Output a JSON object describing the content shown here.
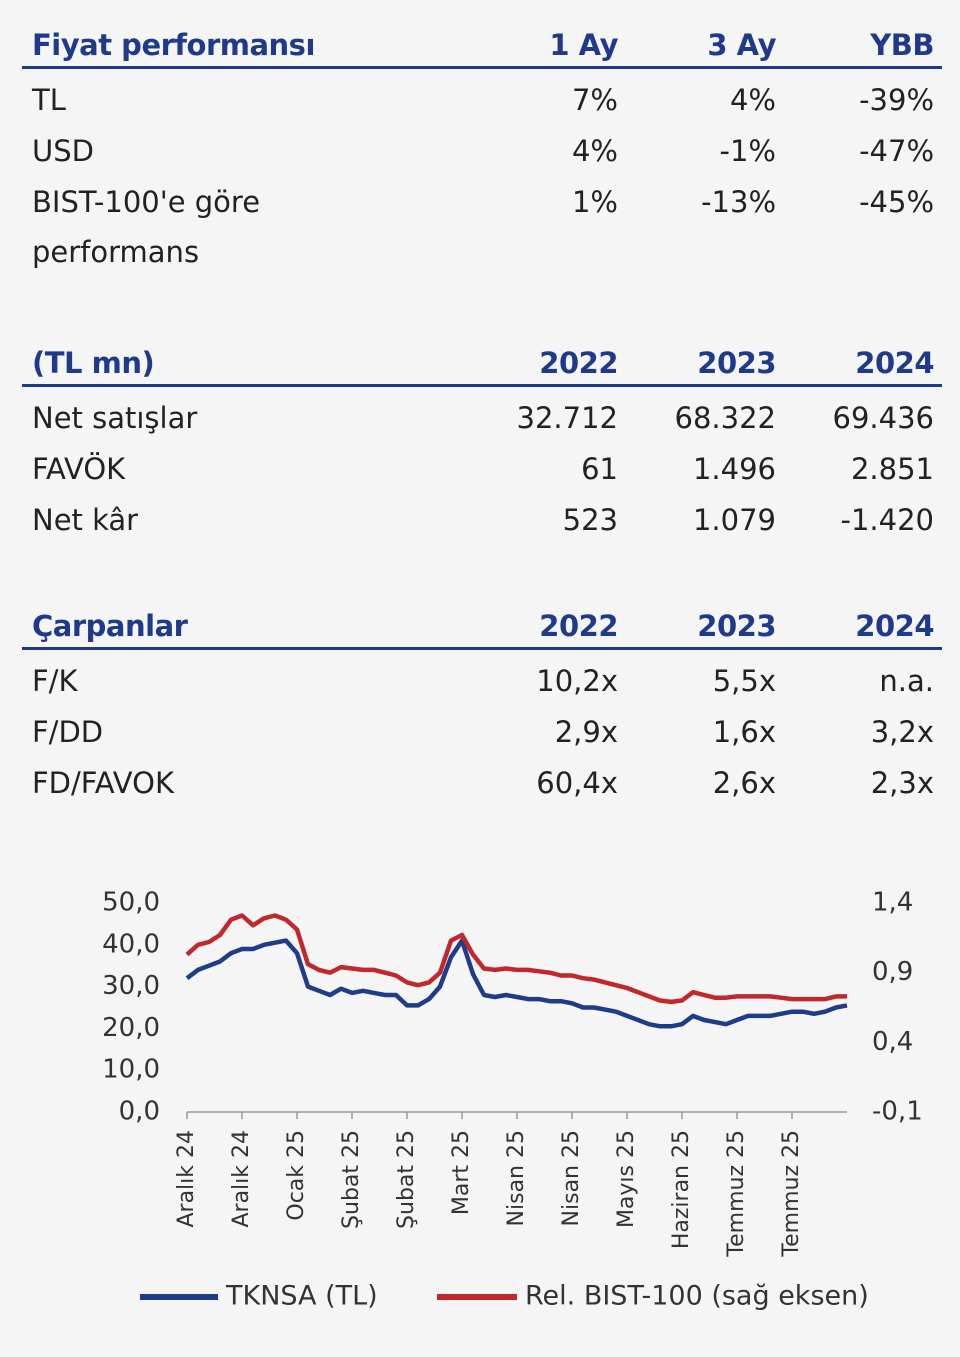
{
  "tables": [
    {
      "header": [
        "Fiyat performansı",
        "1 Ay",
        "3 Ay",
        "YBB"
      ],
      "rows": [
        [
          "TL",
          "7%",
          "4%",
          "-39%"
        ],
        [
          "USD",
          "4%",
          "-1%",
          "-47%"
        ],
        [
          "BIST-100'e göre performans",
          "1%",
          "-13%",
          "-45%"
        ]
      ]
    },
    {
      "header": [
        "(TL mn)",
        "2022",
        "2023",
        "2024"
      ],
      "rows": [
        [
          "Net satışlar",
          "32.712",
          "68.322",
          "69.436"
        ],
        [
          "FAVÖK",
          "61",
          "1.496",
          "2.851"
        ],
        [
          "Net kâr",
          "523",
          "1.079",
          "-1.420"
        ]
      ]
    },
    {
      "header": [
        "Çarpanlar",
        "2022",
        "2023",
        "2024"
      ],
      "rows": [
        [
          "F/K",
          "10,2x",
          "5,5x",
          "n.a."
        ],
        [
          "F/DD",
          "2,9x",
          "1,6x",
          "3,2x"
        ],
        [
          "FD/FAVOK",
          "60,4x",
          "2,6x",
          "2,3x"
        ]
      ]
    }
  ],
  "chart_data": {
    "type": "line",
    "categories": [
      "Aralık 24",
      null,
      null,
      null,
      null,
      "Aralık 24",
      null,
      null,
      null,
      null,
      "Ocak 25",
      null,
      null,
      null,
      null,
      "Şubat 25",
      null,
      null,
      null,
      null,
      "Şubat 25",
      null,
      null,
      null,
      null,
      "Mart 25",
      null,
      null,
      null,
      null,
      "Nisan 25",
      null,
      null,
      null,
      null,
      "Nisan 25",
      null,
      null,
      null,
      null,
      "Mayıs 25",
      null,
      null,
      null,
      null,
      "Haziran 25",
      null,
      null,
      null,
      null,
      "Temmuz 25",
      null,
      null,
      null,
      null,
      "Temmuz 25",
      null,
      null,
      null,
      null,
      null
    ],
    "series": [
      {
        "name": "TKNSA (TL)",
        "color": "#1f3c88",
        "values": [
          32,
          34,
          35,
          36,
          38,
          39,
          39,
          40,
          40.5,
          41,
          38,
          30,
          29,
          28,
          29.5,
          28.5,
          29,
          28.5,
          28,
          28,
          25.5,
          25.5,
          27,
          30,
          37,
          41,
          33,
          28,
          27.5,
          28,
          27.5,
          27,
          27,
          26.5,
          26.5,
          26,
          25,
          25,
          24.5,
          24,
          23,
          22,
          21,
          20.5,
          20.5,
          21,
          23,
          22,
          21.5,
          21,
          22,
          23,
          23,
          23,
          23.5,
          24,
          24,
          23.5,
          24,
          25,
          25.5
        ]
      },
      {
        "name": "Rel. BIST-100 (sağ eksen)",
        "color": "#c0282d",
        "axis": "y2",
        "values": [
          1.03,
          1.1,
          1.12,
          1.17,
          1.28,
          1.31,
          1.24,
          1.29,
          1.31,
          1.28,
          1.21,
          0.96,
          0.92,
          0.9,
          0.94,
          0.93,
          0.92,
          0.92,
          0.9,
          0.88,
          0.83,
          0.81,
          0.83,
          0.9,
          1.13,
          1.17,
          1.03,
          0.93,
          0.92,
          0.93,
          0.92,
          0.92,
          0.91,
          0.9,
          0.88,
          0.88,
          0.86,
          0.85,
          0.83,
          0.81,
          0.79,
          0.76,
          0.73,
          0.7,
          0.69,
          0.7,
          0.76,
          0.74,
          0.72,
          0.72,
          0.73,
          0.73,
          0.73,
          0.73,
          0.72,
          0.71,
          0.71,
          0.71,
          0.71,
          0.73,
          0.73
        ]
      }
    ],
    "ylim": [
      0,
      50
    ],
    "yticks": [
      {
        "value": 0,
        "label": "0,0"
      },
      {
        "value": 10,
        "label": "10,0"
      },
      {
        "value": 20,
        "label": "20,0"
      },
      {
        "value": 30,
        "label": "30,0"
      },
      {
        "value": 40,
        "label": "40,0"
      },
      {
        "value": 50,
        "label": "50,0"
      }
    ],
    "y2lim": [
      -0.1,
      1.4
    ],
    "y2ticks": [
      {
        "value": -0.1,
        "label": "-0,1"
      },
      {
        "value": 0.4,
        "label": "0,4"
      },
      {
        "value": 0.9,
        "label": "0,9"
      },
      {
        "value": 1.4,
        "label": "1,4"
      }
    ]
  }
}
